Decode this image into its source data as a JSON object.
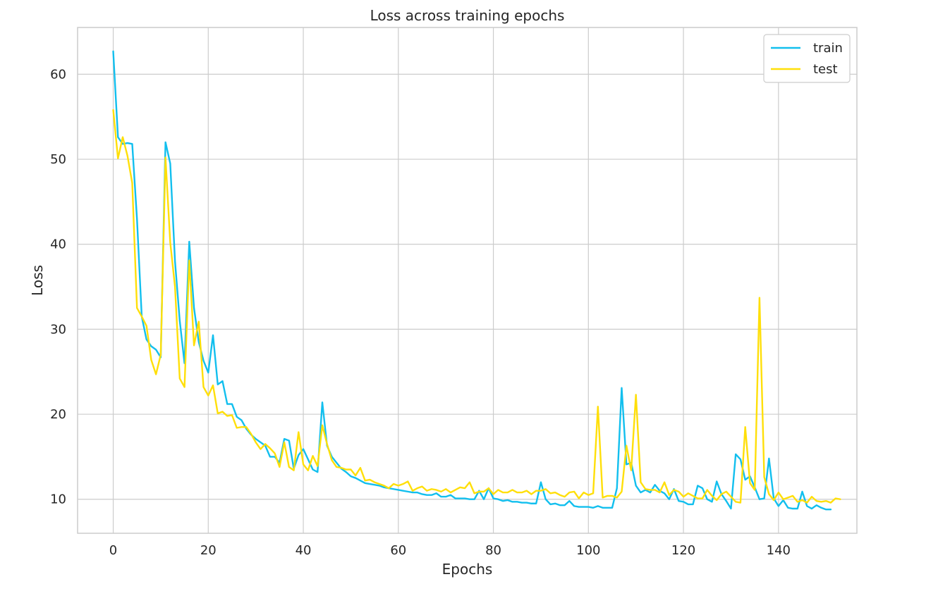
{
  "chart_data": {
    "type": "line",
    "title": "Loss across training epochs",
    "xlabel": "Epochs",
    "ylabel": "Loss",
    "xlim": [
      -7.5,
      156.5
    ],
    "ylim": [
      6.0,
      65.5
    ],
    "xticks": [
      0,
      20,
      40,
      60,
      80,
      100,
      120,
      140
    ],
    "yticks": [
      10,
      20,
      30,
      40,
      50,
      60
    ],
    "grid": true,
    "legend_position": "top-right",
    "series": [
      {
        "name": "train",
        "color": "#12bfee",
        "values": [
          62.7,
          52.6,
          51.8,
          51.9,
          51.8,
          43,
          31.5,
          28.8,
          28,
          27.6,
          26.7,
          52,
          49.5,
          38,
          31,
          26,
          40.3,
          32.5,
          28.5,
          26.3,
          24.9,
          29.3,
          23.5,
          23.9,
          21.2,
          21.2,
          19.7,
          19.3,
          18.3,
          17.6,
          17.1,
          16.7,
          16.3,
          15,
          15,
          14.3,
          17.1,
          16.9,
          13.6,
          15.2,
          15.9,
          14.7,
          13.5,
          13.2,
          21.4,
          16.3,
          15,
          14.3,
          13.6,
          13.2,
          12.7,
          12.5,
          12.2,
          11.9,
          11.8,
          11.7,
          11.6,
          11.4,
          11.3,
          11.2,
          11.1,
          11,
          10.9,
          10.8,
          10.8,
          10.6,
          10.5,
          10.5,
          10.7,
          10.3,
          10.3,
          10.5,
          10.1,
          10.1,
          10.1,
          10,
          10,
          11,
          10,
          11.3,
          10.1,
          10,
          9.8,
          9.9,
          9.7,
          9.7,
          9.6,
          9.6,
          9.5,
          9.5,
          12,
          10,
          9.4,
          9.5,
          9.3,
          9.3,
          9.8,
          9.2,
          9.1,
          9.1,
          9.1,
          9,
          9.2,
          9,
          9,
          9,
          11.3,
          23.1,
          14.1,
          14.3,
          11.6,
          10.8,
          11.1,
          10.8,
          11.7,
          11,
          10.7,
          10,
          11.2,
          9.8,
          9.7,
          9.4,
          9.4,
          11.6,
          11.3,
          10,
          9.7,
          12.1,
          10.6,
          9.8,
          8.9,
          15.3,
          14.7,
          12.3,
          12.7,
          11.4,
          10,
          10.1,
          14.8,
          10.1,
          9.2,
          9.9,
          9,
          8.9,
          8.9,
          10.9,
          9.2,
          8.9,
          9.3,
          9,
          8.8,
          8.8
        ]
      },
      {
        "name": "test",
        "color": "#ffdf09",
        "values": [
          55.8,
          50.1,
          52.6,
          50.4,
          47.2,
          32.5,
          31.5,
          30.4,
          26.4,
          24.7,
          27,
          50.2,
          40.2,
          35,
          24.2,
          23.2,
          38.1,
          28.1,
          30.9,
          23.2,
          22.2,
          23.4,
          20.1,
          20.3,
          19.8,
          19.9,
          18.4,
          18.5,
          18.5,
          17.7,
          16.7,
          15.9,
          16.5,
          16,
          15.4,
          13.8,
          16.7,
          13.8,
          13.4,
          17.9,
          14.1,
          13.4,
          15.1,
          13.9,
          18.7,
          16.5,
          14.6,
          13.8,
          13.7,
          13.5,
          13.5,
          12.8,
          13.7,
          12.2,
          12.3,
          12,
          11.8,
          11.6,
          11.3,
          11.8,
          11.6,
          11.8,
          12.1,
          11,
          11.3,
          11.5,
          11,
          11.2,
          11.1,
          10.9,
          11.2,
          10.8,
          11.1,
          11.4,
          11.3,
          12,
          10.7,
          10.9,
          10.9,
          11.3,
          10.6,
          11.1,
          10.8,
          10.8,
          11.1,
          10.8,
          10.8,
          11,
          10.6,
          11,
          11,
          11.2,
          10.7,
          10.8,
          10.5,
          10.3,
          10.8,
          10.9,
          10.1,
          10.8,
          10.5,
          10.7,
          20.9,
          10.2,
          10.4,
          10.4,
          10.2,
          10.9,
          16.3,
          13.4,
          22.3,
          12,
          11.2,
          11.1,
          11.1,
          10.8,
          12,
          10.5,
          11.1,
          10.9,
          10.3,
          10.7,
          10.4,
          10.1,
          10.1,
          11.1,
          10.4,
          9.9,
          10.6,
          10.9,
          10.3,
          9.7,
          9.6,
          18.5,
          11.9,
          11.1,
          33.7,
          12.6,
          10.6,
          9.9,
          10.8,
          10,
          10.2,
          10.4,
          9.7,
          9.9,
          9.6,
          10.3,
          9.8,
          9.7,
          9.8,
          9.6,
          10.1,
          10
        ]
      }
    ]
  }
}
